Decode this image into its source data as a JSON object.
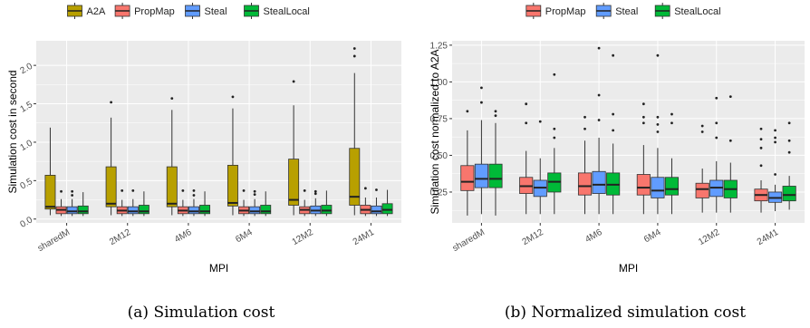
{
  "colors": {
    "A2A": "#b8a000",
    "PropMap": "#f8766d",
    "Steal": "#619cff",
    "StealLocal": "#00ba38",
    "panel_bg": "#ebebeb",
    "grid": "#ffffff"
  },
  "chart_data": [
    {
      "type": "box",
      "caption": "(a) Simulation cost",
      "xlabel": "MPI",
      "ylabel": "Simulation cost in second",
      "ylim": [
        -0.05,
        2.32
      ],
      "yticks": [
        0.0,
        0.5,
        1.0,
        1.5,
        2.0
      ],
      "ytick_labels": [
        "0.0",
        "0.5",
        "1.0",
        "1.5",
        "2.0"
      ],
      "categories": [
        "sharedM",
        "2M12",
        "4M6",
        "6M4",
        "12M2",
        "24M1"
      ],
      "legend": [
        "A2A",
        "PropMap",
        "Steal",
        "StealLocal"
      ],
      "legend_position": "top",
      "series": [
        {
          "name": "A2A",
          "boxes": [
            {
              "min": 0.05,
              "q1": 0.13,
              "median": 0.16,
              "q3": 0.57,
              "max": 1.19,
              "outliers": []
            },
            {
              "min": 0.05,
              "q1": 0.16,
              "median": 0.2,
              "q3": 0.68,
              "max": 1.32,
              "outliers": [
                1.52
              ]
            },
            {
              "min": 0.05,
              "q1": 0.16,
              "median": 0.2,
              "q3": 0.68,
              "max": 1.42,
              "outliers": [
                1.57
              ]
            },
            {
              "min": 0.05,
              "q1": 0.17,
              "median": 0.21,
              "q3": 0.7,
              "max": 1.44,
              "outliers": [
                1.59
              ]
            },
            {
              "min": 0.05,
              "q1": 0.18,
              "median": 0.25,
              "q3": 0.78,
              "max": 1.48,
              "outliers": [
                1.79
              ]
            },
            {
              "min": 0.05,
              "q1": 0.18,
              "median": 0.29,
              "q3": 0.92,
              "max": 1.9,
              "outliers": [
                2.12,
                2.22
              ]
            }
          ]
        },
        {
          "name": "PropMap",
          "boxes": [
            {
              "min": 0.04,
              "q1": 0.07,
              "median": 0.12,
              "q3": 0.16,
              "max": 0.26,
              "outliers": [
                0.36
              ]
            },
            {
              "min": 0.04,
              "q1": 0.07,
              "median": 0.11,
              "q3": 0.16,
              "max": 0.25,
              "outliers": [
                0.37
              ]
            },
            {
              "min": 0.04,
              "q1": 0.07,
              "median": 0.11,
              "q3": 0.16,
              "max": 0.25,
              "outliers": [
                0.37
              ]
            },
            {
              "min": 0.04,
              "q1": 0.07,
              "median": 0.11,
              "q3": 0.16,
              "max": 0.25,
              "outliers": [
                0.37
              ]
            },
            {
              "min": 0.04,
              "q1": 0.07,
              "median": 0.12,
              "q3": 0.16,
              "max": 0.25,
              "outliers": [
                0.37
              ]
            },
            {
              "min": 0.04,
              "q1": 0.07,
              "median": 0.12,
              "q3": 0.18,
              "max": 0.28,
              "outliers": [
                0.4
              ]
            }
          ]
        },
        {
          "name": "Steal",
          "boxes": [
            {
              "min": 0.04,
              "q1": 0.07,
              "median": 0.1,
              "q3": 0.16,
              "max": 0.26,
              "outliers": [
                0.31,
                0.36
              ]
            },
            {
              "min": 0.04,
              "q1": 0.07,
              "median": 0.1,
              "q3": 0.16,
              "max": 0.26,
              "outliers": [
                0.37
              ]
            },
            {
              "min": 0.04,
              "q1": 0.07,
              "median": 0.1,
              "q3": 0.16,
              "max": 0.26,
              "outliers": [
                0.31,
                0.37
              ]
            },
            {
              "min": 0.04,
              "q1": 0.07,
              "median": 0.1,
              "q3": 0.16,
              "max": 0.26,
              "outliers": [
                0.32,
                0.36
              ]
            },
            {
              "min": 0.04,
              "q1": 0.07,
              "median": 0.11,
              "q3": 0.17,
              "max": 0.27,
              "outliers": [
                0.33,
                0.36
              ]
            },
            {
              "min": 0.04,
              "q1": 0.07,
              "median": 0.1,
              "q3": 0.17,
              "max": 0.28,
              "outliers": [
                0.38
              ]
            }
          ]
        },
        {
          "name": "StealLocal",
          "boxes": [
            {
              "min": 0.04,
              "q1": 0.07,
              "median": 0.1,
              "q3": 0.17,
              "max": 0.35,
              "outliers": []
            },
            {
              "min": 0.04,
              "q1": 0.07,
              "median": 0.1,
              "q3": 0.18,
              "max": 0.36,
              "outliers": []
            },
            {
              "min": 0.04,
              "q1": 0.07,
              "median": 0.1,
              "q3": 0.18,
              "max": 0.36,
              "outliers": []
            },
            {
              "min": 0.04,
              "q1": 0.07,
              "median": 0.1,
              "q3": 0.18,
              "max": 0.36,
              "outliers": []
            },
            {
              "min": 0.04,
              "q1": 0.07,
              "median": 0.11,
              "q3": 0.18,
              "max": 0.37,
              "outliers": []
            },
            {
              "min": 0.04,
              "q1": 0.07,
              "median": 0.12,
              "q3": 0.2,
              "max": 0.38,
              "outliers": []
            }
          ]
        }
      ]
    },
    {
      "type": "box",
      "caption": "(b) Normalized simulation cost",
      "xlabel": "MPI",
      "ylabel": "Simulation cost normalized to A2A",
      "ylim": [
        0.04,
        1.28
      ],
      "yticks": [
        0.25,
        0.5,
        0.75,
        1.0,
        1.25
      ],
      "ytick_labels": [
        "0.25",
        "0.50",
        "0.75",
        "1.00",
        "1.25"
      ],
      "categories": [
        "sharedM",
        "2M12",
        "4M6",
        "6M4",
        "12M2",
        "24M1"
      ],
      "legend": [
        "PropMap",
        "Steal",
        "StealLocal"
      ],
      "legend_position": "top",
      "series": [
        {
          "name": "PropMap",
          "boxes": [
            {
              "min": 0.09,
              "q1": 0.26,
              "median": 0.32,
              "q3": 0.43,
              "max": 0.67,
              "outliers": [
                0.8
              ]
            },
            {
              "min": 0.1,
              "q1": 0.24,
              "median": 0.29,
              "q3": 0.35,
              "max": 0.53,
              "outliers": [
                0.72,
                0.85
              ]
            },
            {
              "min": 0.1,
              "q1": 0.23,
              "median": 0.29,
              "q3": 0.38,
              "max": 0.6,
              "outliers": [
                0.68,
                0.76
              ]
            },
            {
              "min": 0.1,
              "q1": 0.23,
              "median": 0.28,
              "q3": 0.37,
              "max": 0.57,
              "outliers": [
                0.72,
                0.76,
                0.85
              ]
            },
            {
              "min": 0.11,
              "q1": 0.21,
              "median": 0.27,
              "q3": 0.31,
              "max": 0.41,
              "outliers": [
                0.66,
                0.7
              ]
            },
            {
              "min": 0.11,
              "q1": 0.19,
              "median": 0.23,
              "q3": 0.27,
              "max": 0.33,
              "outliers": [
                0.43,
                0.55,
                0.61,
                0.68
              ]
            }
          ]
        },
        {
          "name": "Steal",
          "boxes": [
            {
              "min": 0.1,
              "q1": 0.28,
              "median": 0.34,
              "q3": 0.44,
              "max": 0.74,
              "outliers": [
                0.86,
                0.96
              ]
            },
            {
              "min": 0.1,
              "q1": 0.22,
              "median": 0.28,
              "q3": 0.33,
              "max": 0.48,
              "outliers": [
                0.73
              ]
            },
            {
              "min": 0.1,
              "q1": 0.24,
              "median": 0.3,
              "q3": 0.39,
              "max": 0.62,
              "outliers": [
                0.74,
                0.91,
                1.23
              ]
            },
            {
              "min": 0.1,
              "q1": 0.21,
              "median": 0.26,
              "q3": 0.35,
              "max": 0.55,
              "outliers": [
                0.66,
                0.71,
                0.76,
                1.18
              ]
            },
            {
              "min": 0.11,
              "q1": 0.22,
              "median": 0.28,
              "q3": 0.33,
              "max": 0.46,
              "outliers": [
                0.62,
                0.72,
                0.89
              ]
            },
            {
              "min": 0.12,
              "q1": 0.18,
              "median": 0.21,
              "q3": 0.25,
              "max": 0.3,
              "outliers": [
                0.37,
                0.59,
                0.62,
                0.67
              ]
            }
          ]
        },
        {
          "name": "StealLocal",
          "boxes": [
            {
              "min": 0.09,
              "q1": 0.28,
              "median": 0.34,
              "q3": 0.44,
              "max": 0.72,
              "outliers": [
                0.77,
                0.8
              ]
            },
            {
              "min": 0.1,
              "q1": 0.25,
              "median": 0.32,
              "q3": 0.38,
              "max": 0.55,
              "outliers": [
                0.62,
                0.68,
                1.05
              ]
            },
            {
              "min": 0.1,
              "q1": 0.23,
              "median": 0.3,
              "q3": 0.38,
              "max": 0.58,
              "outliers": [
                0.67,
                0.78,
                1.18
              ]
            },
            {
              "min": 0.1,
              "q1": 0.23,
              "median": 0.27,
              "q3": 0.35,
              "max": 0.48,
              "outliers": [
                0.72,
                0.78
              ]
            },
            {
              "min": 0.11,
              "q1": 0.21,
              "median": 0.27,
              "q3": 0.33,
              "max": 0.45,
              "outliers": [
                0.6,
                0.9
              ]
            },
            {
              "min": 0.13,
              "q1": 0.19,
              "median": 0.23,
              "q3": 0.29,
              "max": 0.36,
              "outliers": [
                0.52,
                0.6,
                0.72
              ]
            }
          ]
        }
      ]
    }
  ]
}
